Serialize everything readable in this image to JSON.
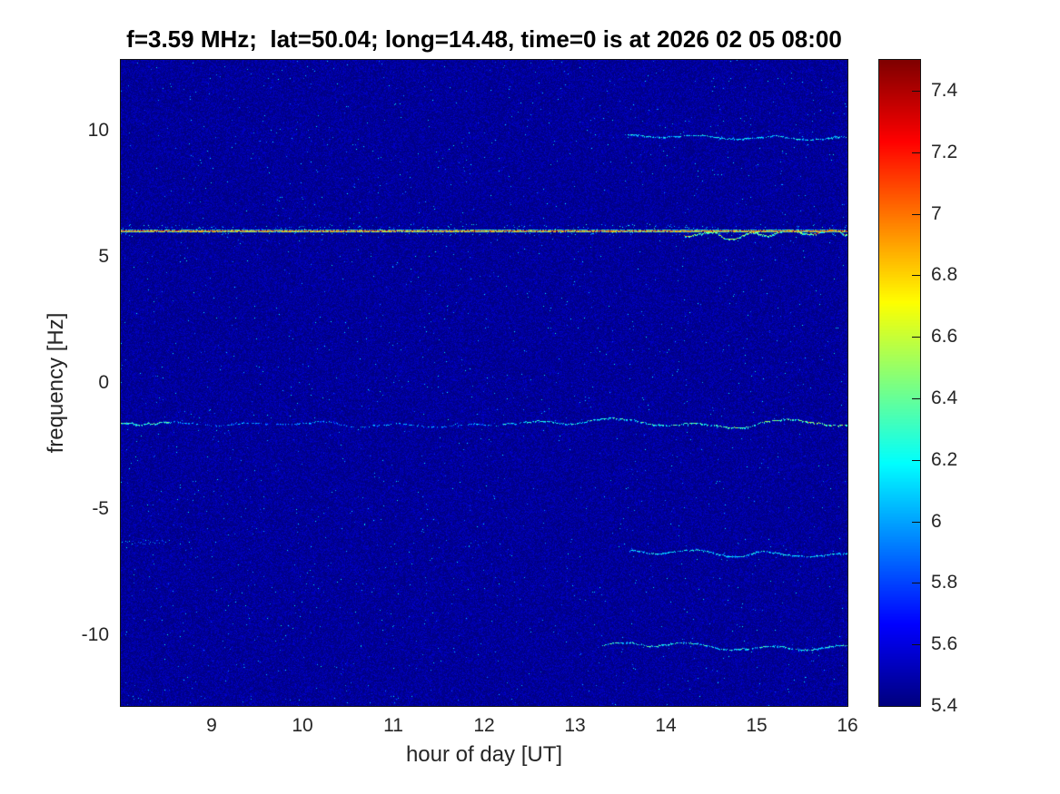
{
  "chart_data": {
    "type": "heatmap",
    "subtype": "spectrogram",
    "title": "f=3.59 MHz;  lat=50.04; long=14.48, time=0 is at 2026 02 05 08:00",
    "xlabel": "hour of day [UT]",
    "ylabel": "frequency [Hz]",
    "xlim": [
      8,
      16
    ],
    "ylim": [
      -12.8,
      12.8
    ],
    "x_ticks": [
      9,
      10,
      11,
      12,
      13,
      14,
      15,
      16
    ],
    "y_ticks": [
      10,
      5,
      0,
      -5,
      -10
    ],
    "grid": false,
    "colormap": "jet",
    "colorbar": {
      "position": "right",
      "min": 5.4,
      "max": 7.5,
      "ticks": [
        7.4,
        7.2,
        7,
        6.8,
        6.6,
        6.4,
        6.2,
        6,
        5.8,
        5.6,
        5.4
      ]
    },
    "noise_floor_value": 5.45,
    "features": [
      {
        "name": "carrier-line",
        "freq_hz": 6.05,
        "hour_start": 8.0,
        "hour_end": 16.0,
        "peak_value": 7.3,
        "typical_value": 7.0,
        "style": "straight-strong",
        "description": "strong narrow horizontal carrier, orange-red core with green-cyan fringe; wavy cyan-yellow splatter just below it after ~14.2 UT"
      },
      {
        "name": "upper-doppler-trace",
        "freq_hz": 9.8,
        "hour_start": 13.55,
        "hour_end": 16.0,
        "peak_value": 6.35,
        "style": "wavy-faint",
        "description": "faint wavy cyan trace near +10 Hz, right part of plot only"
      },
      {
        "name": "lower-doppler-trace-1",
        "freq_hz": -1.6,
        "hour_start": 8.0,
        "hour_end": 16.0,
        "peak_value": 7.0,
        "style": "broken-wavy",
        "description": "broken faint cyan trace across full width; bright patch at 8.0-8.6 UT; brightens and grows wavier after ~12 UT with green-yellow and sparse red specks near 15-16 UT"
      },
      {
        "name": "lower-doppler-trace-2",
        "freq_hz": -6.7,
        "hour_start": 13.6,
        "hour_end": 16.0,
        "peak_value": 6.35,
        "style": "wavy-faint",
        "description": "faint wavy cyan trace, right part only"
      },
      {
        "name": "lower-doppler-trace-3",
        "freq_hz": -10.4,
        "hour_start": 13.3,
        "hour_end": 16.0,
        "peak_value": 6.45,
        "style": "wavy-faint",
        "description": "faint wavy cyan-green trace, right part only"
      },
      {
        "name": "left-speckle-patch",
        "freq_hz": -6.3,
        "hour_start": 8.0,
        "hour_end": 8.5,
        "peak_value": 6.1,
        "style": "speckle",
        "description": "small faint cyan speckle patch at left edge"
      }
    ]
  }
}
